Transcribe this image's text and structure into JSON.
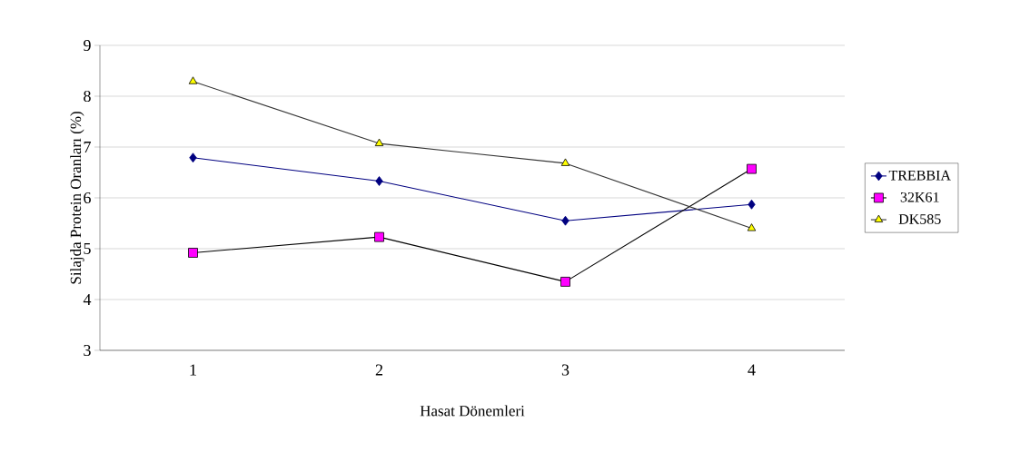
{
  "chart_data": {
    "type": "line",
    "xlabel": "Hasat Dönemleri",
    "ylabel": "Silajda Protein Oranları (%)",
    "categories": [
      "1",
      "2",
      "3",
      "4"
    ],
    "series": [
      {
        "name": "TREBBIA",
        "color": "#000080",
        "colors": [
          "#000080",
          "#000080",
          "#000080",
          "#000080"
        ],
        "marker": "diamond",
        "values": [
          6.79,
          6.33,
          5.55,
          5.87
        ]
      },
      {
        "name": "32K61",
        "color": "#000000",
        "colors": [
          "#ff00ff",
          "#ff00ff",
          "#ff00ff",
          "#ff00ff"
        ],
        "marker": "square",
        "values": [
          4.92,
          5.23,
          4.35,
          6.57
        ]
      },
      {
        "name": "DK585",
        "color": "#333333",
        "colors": [
          "#ffff00",
          "#ffff00",
          "#ffff00",
          "#ffff00"
        ],
        "marker": "triangle",
        "values": [
          8.29,
          7.07,
          6.68,
          5.4
        ]
      }
    ],
    "ylim": [
      3,
      9
    ],
    "yticks": [
      3,
      4,
      5,
      6,
      7,
      8,
      9
    ],
    "grid": "y",
    "legend": "right",
    "line_style": "solid"
  }
}
